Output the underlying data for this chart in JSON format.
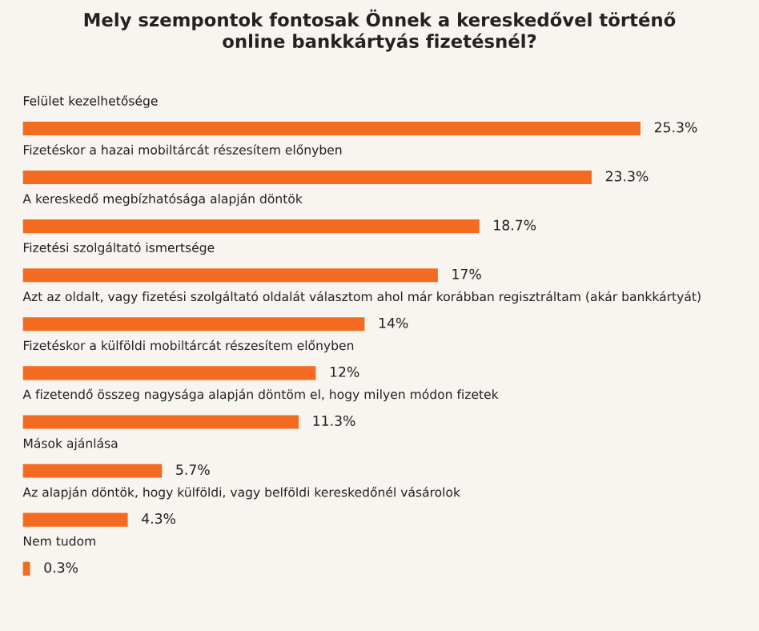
{
  "chart_data": {
    "type": "bar",
    "orientation": "horizontal",
    "title": "Mely szempontok fontosak Önnek a kereskedővel történő\nonline bankkártyás fizetésnél?",
    "categories": [
      "Felület kezelhetősége",
      "Fizetéskor a hazai mobiltárcát részesítem előnyben",
      "A kereskedő megbízhatósága alapján döntök",
      "Fizetési szolgáltató ismertsége",
      "Azt az oldalt, vagy fizetési szolgáltató oldalát választom ahol már korábban regisztráltam (akár bankkártyát)",
      "Fizetéskor a külföldi mobiltárcát részesítem előnyben",
      "A fizetendő összeg nagysága alapján döntöm el, hogy milyen módon fizetek",
      "Mások ajánlása",
      "Az alapján döntök, hogy külföldi, vagy belföldi kereskedőnél vásárolok",
      "Nem tudom"
    ],
    "values": [
      25.3,
      23.3,
      18.7,
      17,
      14,
      12,
      11.3,
      5.7,
      4.3,
      0.3
    ],
    "value_labels": [
      "25.3%",
      "23.3%",
      "18.7%",
      "17%",
      "14%",
      "12%",
      "11.3%",
      "5.7%",
      "4.3%",
      "0.3%"
    ],
    "color": "#f26b21"
  }
}
